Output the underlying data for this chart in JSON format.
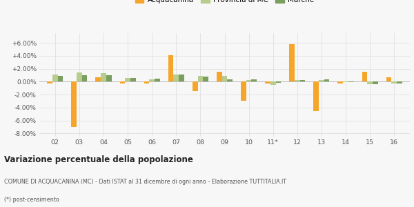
{
  "years": [
    "02",
    "03",
    "04",
    "05",
    "06",
    "07",
    "08",
    "09",
    "10",
    "11*",
    "12",
    "13",
    "14",
    "15",
    "16"
  ],
  "acquacanina": [
    -0.3,
    -7.0,
    0.7,
    -0.3,
    -0.3,
    4.1,
    -1.5,
    1.5,
    -3.0,
    -0.3,
    5.8,
    -4.6,
    -0.3,
    1.5,
    0.7
  ],
  "provincia": [
    1.1,
    1.4,
    1.3,
    0.6,
    0.4,
    1.1,
    0.9,
    0.9,
    0.3,
    -0.5,
    0.3,
    0.3,
    -0.1,
    -0.4,
    -0.3
  ],
  "marche": [
    0.9,
    1.0,
    1.0,
    0.6,
    0.5,
    1.1,
    0.8,
    0.4,
    0.4,
    -0.2,
    0.3,
    0.4,
    -0.1,
    -0.4,
    -0.3
  ],
  "color_acquacanina": "#f5a52a",
  "color_provincia": "#b8cc8e",
  "color_marche": "#7a9e5e",
  "ylim": [
    -8.5,
    7.5
  ],
  "yticks": [
    -8.0,
    -6.0,
    -4.0,
    -2.0,
    0.0,
    2.0,
    4.0,
    6.0
  ],
  "ytick_labels": [
    "-8.00%",
    "-6.00%",
    "-4.00%",
    "-2.00%",
    "0.00%",
    "+2.00%",
    "+4.00%",
    "+6.00%"
  ],
  "title": "Variazione percentuale della popolazione",
  "subtitle": "COMUNE DI ACQUACANINA (MC) - Dati ISTAT al 31 dicembre di ogni anno - Elaborazione TUTTITALIA.IT",
  "footnote": "(*) post-censimento",
  "bg_color": "#f7f7f7",
  "grid_color": "#e0e0e0",
  "bar_width": 0.22
}
